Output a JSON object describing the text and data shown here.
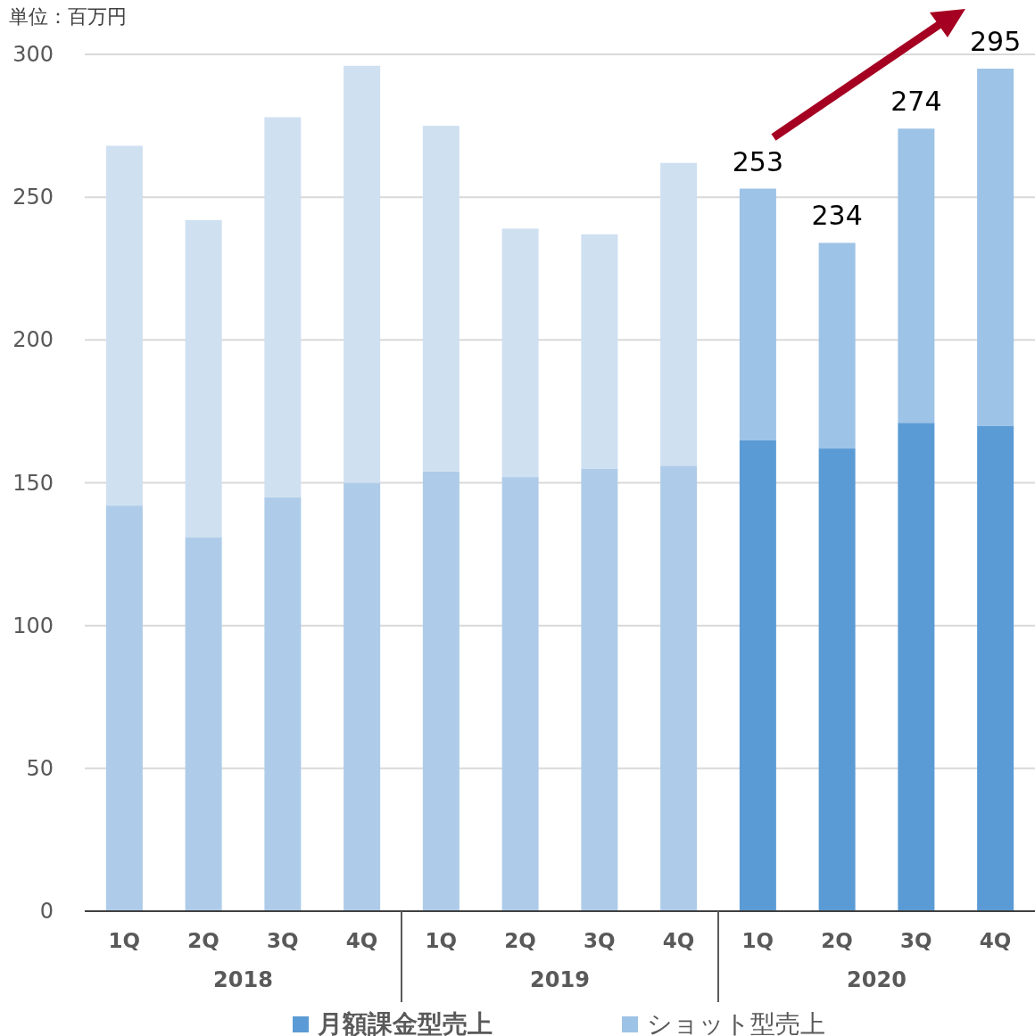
{
  "chart_data": {
    "type": "bar",
    "stacked": true,
    "subtitle": "単位：百万円",
    "categories": [
      "1Q",
      "2Q",
      "3Q",
      "4Q",
      "1Q",
      "2Q",
      "3Q",
      "4Q",
      "1Q",
      "2Q",
      "3Q",
      "4Q"
    ],
    "annotations": [
      "2018",
      "2019",
      "2020"
    ],
    "series": [
      {
        "name": "月額課金型売上",
        "color": "#5b9bd5",
        "colors": [
          "#aecce9",
          "#aecce9",
          "#aecce9",
          "#aecce9",
          "#aecce9",
          "#aecce9",
          "#aecce9",
          "#aecce9",
          "#5b9bd5",
          "#5b9bd5",
          "#5b9bd5",
          "#5b9bd5"
        ],
        "values": [
          142,
          131,
          145,
          150,
          154,
          152,
          155,
          156,
          165,
          162,
          171,
          170
        ]
      },
      {
        "name": "ショット型売上",
        "color": "#9dc3e6",
        "colors": [
          "#cfe0f1",
          "#cfe0f1",
          "#cfe0f1",
          "#cfe0f1",
          "#cfe0f1",
          "#cfe0f1",
          "#cfe0f1",
          "#cfe0f1",
          "#9dc3e6",
          "#9dc3e6",
          "#9dc3e6",
          "#9dc3e6"
        ],
        "values": [
          126,
          111,
          133,
          146,
          121,
          87,
          82,
          106,
          88,
          72,
          103,
          125
        ]
      }
    ],
    "totals": [
      null,
      null,
      null,
      null,
      null,
      null,
      null,
      null,
      "253",
      "234",
      "274",
      "295"
    ],
    "ylim": [
      0,
      300
    ],
    "yticks": [
      0,
      50,
      100,
      150,
      200,
      250,
      300
    ],
    "grid": "y",
    "legend": "bottom"
  }
}
